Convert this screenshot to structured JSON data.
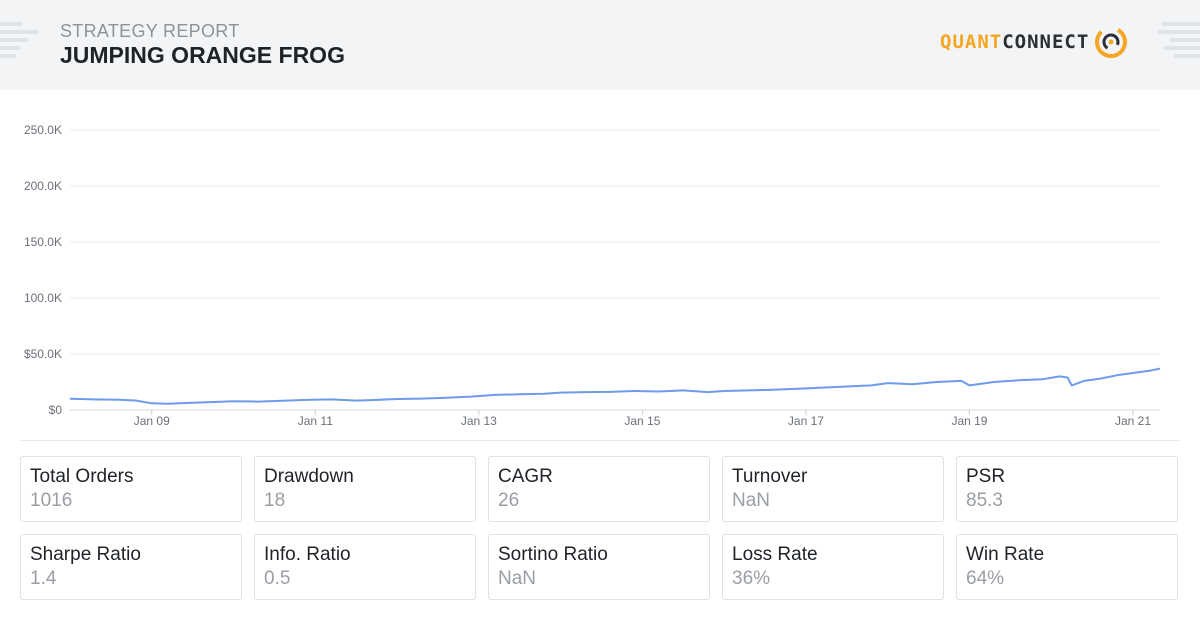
{
  "header": {
    "subtitle": "STRATEGY REPORT",
    "title": "JUMPING ORANGE FROG",
    "logo_part1": "QUANT",
    "logo_part2": "CONNECT"
  },
  "chart_data": {
    "type": "line",
    "title": "",
    "xlabel": "",
    "ylabel": "",
    "ylim": [
      0,
      250000
    ],
    "y_ticks": [
      "$0",
      "$50.0K",
      "100.0K",
      "150.0K",
      "200.0K",
      "250.0K"
    ],
    "y_tick_values": [
      0,
      50000,
      100000,
      150000,
      200000,
      250000
    ],
    "x_ticks": [
      "Jan 09",
      "Jan 11",
      "Jan 13",
      "Jan 15",
      "Jan 17",
      "Jan 19",
      "Jan 21"
    ],
    "x_tick_values": [
      2009.0,
      2011.0,
      2013.0,
      2015.0,
      2017.0,
      2019.0,
      2021.0
    ],
    "xlim": [
      2008.0,
      2021.33
    ],
    "grid": true,
    "line_color": "#6f9bec",
    "series": [
      {
        "x": [
          2008.0,
          2008.3,
          2008.6,
          2008.8,
          2009.0,
          2009.2,
          2009.5,
          2009.8,
          2010.0,
          2010.3,
          2010.6,
          2010.9,
          2011.2,
          2011.5,
          2011.8,
          2012.0,
          2012.3,
          2012.6,
          2012.9,
          2013.2,
          2013.5,
          2013.8,
          2014.0,
          2014.3,
          2014.6,
          2014.9,
          2015.2,
          2015.5,
          2015.8,
          2016.0,
          2016.3,
          2016.6,
          2016.9,
          2017.2,
          2017.5,
          2017.8,
          2018.0,
          2018.3,
          2018.6,
          2018.9,
          2019.0,
          2019.3,
          2019.6,
          2019.9,
          2020.1,
          2020.2,
          2020.25,
          2020.4,
          2020.6,
          2020.8,
          2021.0,
          2021.2,
          2021.33
        ],
        "values": [
          10000,
          9500,
          9200,
          8500,
          6000,
          5500,
          6500,
          7200,
          7800,
          7500,
          8300,
          9000,
          9500,
          8400,
          9200,
          9800,
          10200,
          11000,
          12000,
          13500,
          14000,
          14500,
          15500,
          16000,
          16200,
          17000,
          16500,
          17500,
          16000,
          17000,
          17500,
          18000,
          19000,
          20000,
          21000,
          22000,
          24000,
          23000,
          25000,
          26000,
          22000,
          25000,
          26500,
          27500,
          30000,
          29000,
          22000,
          26000,
          28000,
          31000,
          33000,
          35000,
          37000
        ]
      }
    ]
  },
  "metrics": [
    {
      "label": "Total Orders",
      "value": "1016"
    },
    {
      "label": "Drawdown",
      "value": "18"
    },
    {
      "label": "CAGR",
      "value": "26"
    },
    {
      "label": "Turnover",
      "value": "NaN"
    },
    {
      "label": "PSR",
      "value": "85.3"
    },
    {
      "label": "Sharpe Ratio",
      "value": "1.4"
    },
    {
      "label": "Info. Ratio",
      "value": "0.5"
    },
    {
      "label": "Sortino Ratio",
      "value": "NaN"
    },
    {
      "label": "Loss Rate",
      "value": "36%"
    },
    {
      "label": "Win Rate",
      "value": "64%"
    }
  ]
}
